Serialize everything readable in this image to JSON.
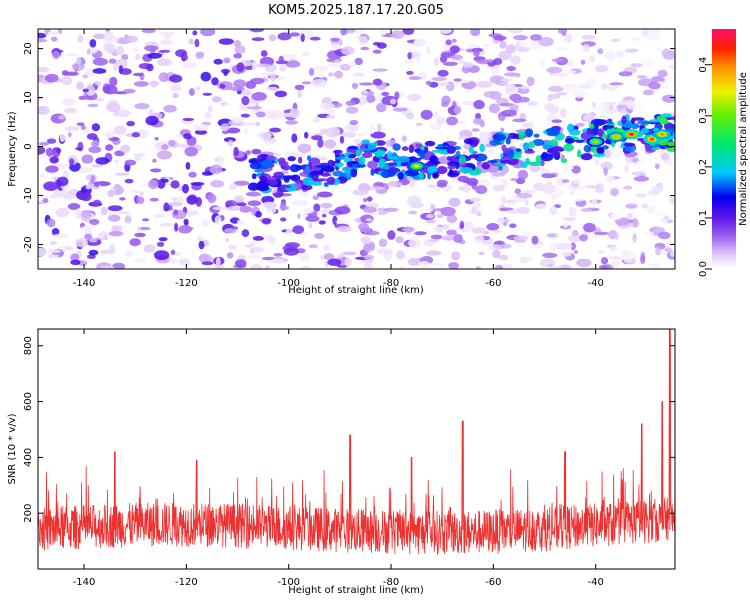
{
  "title": "KOM5.2025.187.17.20.G05",
  "colors": {
    "snr_line": "#ee3030",
    "axes": "#000000",
    "background": "#ffffff"
  },
  "chart_data": [
    {
      "type": "heatmap",
      "xlabel": "Height of straight line (km)",
      "ylabel": "Frequency (Hz)",
      "xlim": [
        -149,
        -24.5
      ],
      "ylim": [
        -25,
        24
      ],
      "xticks": [
        -140,
        -120,
        -100,
        -80,
        -60,
        -40
      ],
      "xtick_labels": [
        "-140",
        "-120",
        "-100",
        "-80",
        "-60",
        "-40"
      ],
      "yticks": [
        -20,
        -10,
        0,
        10,
        20
      ],
      "ytick_labels": [
        "-20",
        "-10",
        "0",
        "10",
        "20"
      ],
      "colorbar": {
        "label": "Normalized spectral amplitude",
        "range": [
          0.0,
          0.47
        ],
        "ticks": [
          0.0,
          0.1,
          0.2,
          0.3,
          0.4
        ],
        "tick_labels": [
          "0.0",
          "0.1",
          "0.2",
          "0.3",
          "0.4"
        ],
        "colormap": "rainbow"
      },
      "ridge": {
        "x": [
          -105,
          -95,
          -85,
          -75,
          -65,
          -55,
          -45,
          -35,
          -27
        ],
        "y": [
          -5.5,
          -5,
          -2.5,
          -3,
          -2,
          -0.5,
          0.5,
          2.5,
          3
        ]
      },
      "hotspots": [
        {
          "x": -75,
          "y": -4,
          "value": 0.35
        },
        {
          "x": -40,
          "y": 1,
          "value": 0.32
        },
        {
          "x": -36,
          "y": 2,
          "value": 0.38
        },
        {
          "x": -33,
          "y": 2.5,
          "value": 0.45
        },
        {
          "x": -29,
          "y": 1.5,
          "value": 0.42
        },
        {
          "x": -27,
          "y": 2.5,
          "value": 0.4
        }
      ],
      "grid": false,
      "legend": "none"
    },
    {
      "type": "line",
      "xlabel": "Height of straight line (km)",
      "ylabel": "SNR (10 * v/v)",
      "xlim": [
        -149,
        -24.5
      ],
      "ylim": [
        0,
        860
      ],
      "xticks": [
        -140,
        -120,
        -100,
        -80,
        -60,
        -40
      ],
      "xtick_labels": [
        "-140",
        "-120",
        "-100",
        "-80",
        "-60",
        "-40"
      ],
      "yticks": [
        200,
        400,
        600,
        800
      ],
      "ytick_labels": [
        "200",
        "400",
        "600",
        "800"
      ],
      "series": [
        {
          "color": "#ee3030",
          "baseline": 140,
          "spikes": [
            {
              "x": -134,
              "y": 420
            },
            {
              "x": -118,
              "y": 390
            },
            {
              "x": -88,
              "y": 480
            },
            {
              "x": -76,
              "y": 400
            },
            {
              "x": -66,
              "y": 530
            },
            {
              "x": -46,
              "y": 420
            },
            {
              "x": -31,
              "y": 520
            },
            {
              "x": -27,
              "y": 600
            },
            {
              "x": -25.5,
              "y": 860
            }
          ]
        }
      ],
      "grid": false,
      "legend": "none"
    }
  ]
}
